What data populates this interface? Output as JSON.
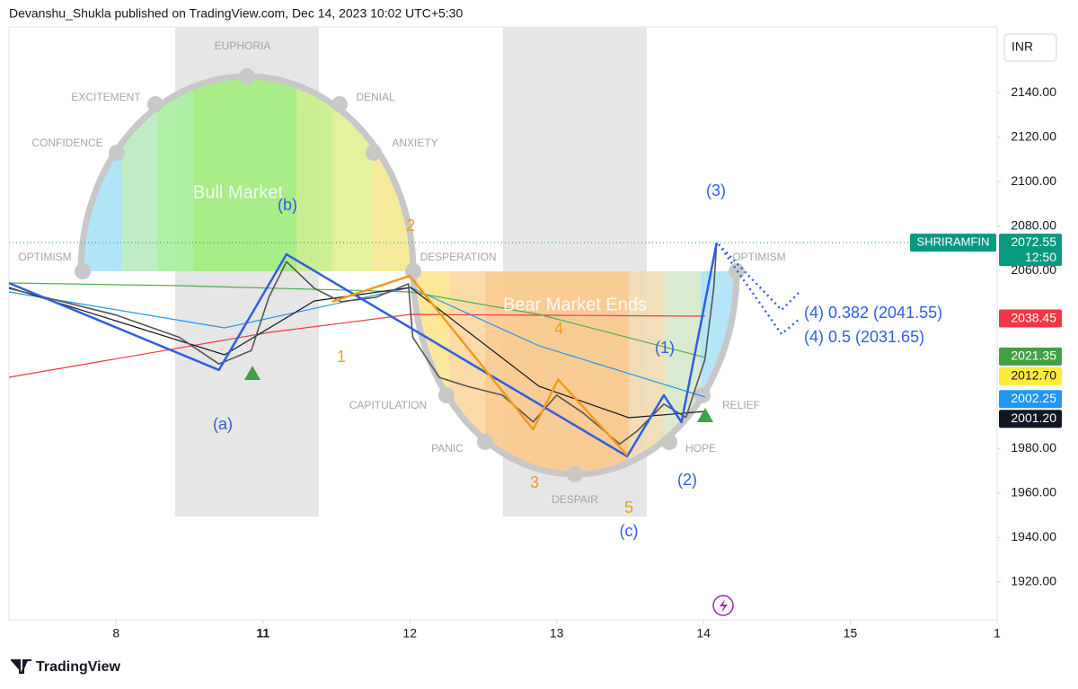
{
  "header": "Devanshu_Shukla published on TradingView.com, Dec 14, 2023 10:02 UTC+5:30",
  "footer": "TradingView",
  "chart_data": {
    "type": "line",
    "currency": "INR",
    "symbol": "SHRIRAMFIN",
    "countdown": "12:50",
    "xlim": [
      -0.73,
      6.0
    ],
    "ylim": [
      1903,
      2169.5
    ],
    "xticks": [
      {
        "value": 0,
        "label": "8"
      },
      {
        "value": 1,
        "label": "11"
      },
      {
        "value": 2,
        "label": "12"
      },
      {
        "value": 3,
        "label": "13"
      },
      {
        "value": 4,
        "label": "14"
      },
      {
        "value": 5,
        "label": "15"
      },
      {
        "value": 6,
        "label": "1"
      }
    ],
    "yticks": [
      {
        "value": 1920,
        "label": "1920.00"
      },
      {
        "value": 1940,
        "label": "1940.00"
      },
      {
        "value": 1960,
        "label": "1960.00"
      },
      {
        "value": 1980,
        "label": "1980.00"
      },
      {
        "value": 2000,
        "label": "2000.00"
      },
      {
        "value": 2020,
        "label": "2020.00"
      },
      {
        "value": 2040,
        "label": "2040.00"
      },
      {
        "value": 2060,
        "label": "2060.00"
      },
      {
        "value": 2080,
        "label": "2080.00"
      },
      {
        "value": 2100,
        "label": "2100.00"
      },
      {
        "value": 2120,
        "label": "2120.00"
      },
      {
        "value": 2140,
        "label": "2140.00"
      }
    ],
    "x": [
      -0.73,
      0,
      0.43,
      0.7,
      0.92,
      1.04,
      1.16,
      1.35,
      1.53,
      1.77,
      1.99,
      2.02,
      2.2,
      2.39,
      2.63,
      2.84,
      3.0,
      3.18,
      3.43,
      3.55,
      3.73,
      3.88,
      4.01,
      4.07,
      4.09
    ],
    "values": [
      2052,
      2040,
      2030,
      2018,
      2024,
      2048,
      2064,
      2052,
      2046,
      2048,
      2054,
      2030,
      2012,
      2008,
      2004,
      1992,
      2004,
      1996,
      1982,
      1988,
      2000,
      1994,
      2020,
      2052,
      2072.55
    ],
    "color": "#555555",
    "waves": [
      {
        "color": "#2f5fe0",
        "x": [
          -0.73,
          0.7,
          1.16,
          3.48,
          3.73,
          3.85,
          4.09
        ],
        "values": [
          2054.4,
          2015.3,
          2067.3,
          1976.5,
          2004,
          1991.8,
          2072.6
        ]
      },
      {
        "color": "#f29b1c",
        "x": [
          1.47,
          2.0,
          2.84,
          3.01,
          3.48
        ],
        "values": [
          2046,
          2057.6,
          1988.6,
          2011,
          1977
        ]
      }
    ],
    "price_tags": [
      {
        "value": 2072.55,
        "label": "2072.55",
        "color": "#089981"
      },
      {
        "value": 2038.45,
        "label": "2038.45",
        "color": "#f23645"
      },
      {
        "value": 2021.35,
        "label": "2021.35",
        "color": "#43a047"
      },
      {
        "value": 2012.7,
        "label": "2012.70",
        "color": "#ffeb3b"
      },
      {
        "value": 2002.25,
        "label": "2002.25",
        "color": "#2196f3"
      },
      {
        "value": 2001.2,
        "label": "2001.20",
        "color": "#131722"
      }
    ],
    "wave_labels": [
      {
        "text": "(a)",
        "color": "#2f5fe0"
      },
      {
        "text": "(b)",
        "color": "#2f5fe0"
      },
      {
        "text": "(c)",
        "color": "#2f5fe0"
      },
      {
        "text": "(1)",
        "color": "#2f5fe0"
      },
      {
        "text": "(2)",
        "color": "#2f5fe0"
      },
      {
        "text": "(3)",
        "color": "#2f5fe0"
      },
      {
        "text": "1",
        "color": "#f29b1c"
      },
      {
        "text": "2",
        "color": "#f29b1c"
      },
      {
        "text": "3",
        "color": "#f29b1c"
      },
      {
        "text": "4",
        "color": "#f29b1c"
      },
      {
        "text": "5",
        "color": "#f29b1c"
      },
      {
        "text": "(4) 0.382 (2041.55)",
        "color": "#2f5fe0"
      },
      {
        "text": "(4) 0.5 (2031.65)",
        "color": "#2f5fe0"
      }
    ],
    "cycle_labels": [
      "OPTIMISM",
      "CONFIDENCE",
      "EXCITEMENT",
      "EUPHORIA",
      "DENIAL",
      "ANXIETY",
      "DESPERATION",
      "CAPITULATION",
      "PANIC",
      "DESPAIR",
      "HOPE",
      "RELIEF",
      "OPTIMISM"
    ],
    "phase_labels": [
      "Bull Market",
      "Bear Market Ends"
    ]
  }
}
